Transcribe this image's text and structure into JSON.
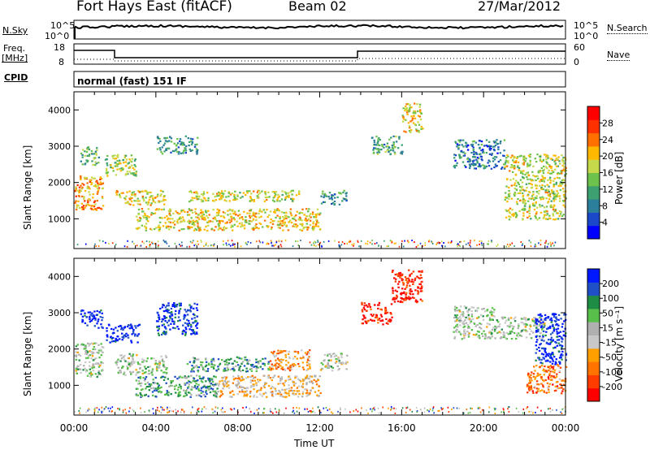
{
  "header": {
    "title": "Fort Hays East (fitACF)",
    "beam": "Beam 02",
    "date": "27/Mar/2012"
  },
  "panels": {
    "nsky": {
      "label": "N.Sky",
      "tick_top": "10^5",
      "tick_bottom": "10^0"
    },
    "nsearch": {
      "label": "N.Search",
      "tick_top": "10^5",
      "tick_bottom": "10^0"
    },
    "freq": {
      "label_top": "Freq.",
      "label_unit": "[MHz]",
      "tick_top": "18",
      "tick_bottom": "8"
    },
    "nave": {
      "label": "Nave",
      "tick_top": "60",
      "tick_bottom": "0"
    },
    "cpid": {
      "label": "CPID",
      "value": "normal (fast) 151 IF"
    }
  },
  "colors": {
    "power_scale": [
      "#0000ff",
      "#1a48c8",
      "#2b7f9a",
      "#3ca070",
      "#6cc24a",
      "#c6d94a",
      "#ffb800",
      "#ff7000",
      "#ff3000",
      "#ff0000"
    ],
    "velocity_scale": [
      "#0018ff",
      "#2050c8",
      "#1f8c46",
      "#58c04a",
      "#b0b0b0",
      "#c8c8c8",
      "#ffa000",
      "#ff7400",
      "#ff3c00",
      "#ff0000"
    ]
  },
  "chart_data": [
    {
      "type": "heatmap",
      "name": "Power",
      "xlabel": "",
      "ylabel": "Slant Range [km]",
      "x_ticks": [
        "00:00",
        "04:00",
        "08:00",
        "12:00",
        "16:00",
        "20:00",
        "00:00"
      ],
      "xlim_hours": [
        0,
        24
      ],
      "y_ticks": [
        1000,
        2000,
        3000,
        4000
      ],
      "ylim": [
        180,
        4500
      ],
      "colorbar": {
        "title": "Power [dB]",
        "ticks": [
          "4",
          "8",
          "12",
          "16",
          "20",
          "24",
          "28"
        ]
      },
      "regions": [
        {
          "t": [
            0.0,
            1.4
          ],
          "r": [
            1250,
            2200
          ],
          "level": 0.7
        },
        {
          "t": [
            0.3,
            1.2
          ],
          "r": [
            2500,
            3000
          ],
          "level": 0.4
        },
        {
          "t": [
            1.5,
            3.0
          ],
          "r": [
            2200,
            2800
          ],
          "level": 0.5
        },
        {
          "t": [
            2.0,
            4.5
          ],
          "r": [
            1400,
            1800
          ],
          "level": 0.6
        },
        {
          "t": [
            4.0,
            6.0
          ],
          "r": [
            2800,
            3300
          ],
          "level": 0.3
        },
        {
          "t": [
            5.5,
            11.0
          ],
          "r": [
            1500,
            1800
          ],
          "level": 0.55
        },
        {
          "t": [
            3.0,
            12.0
          ],
          "r": [
            700,
            1300
          ],
          "level": 0.6
        },
        {
          "t": [
            12.0,
            13.3
          ],
          "r": [
            1400,
            1800
          ],
          "level": 0.3
        },
        {
          "t": [
            14.5,
            16.0
          ],
          "r": [
            2800,
            3300
          ],
          "level": 0.35
        },
        {
          "t": [
            16.0,
            17.0
          ],
          "r": [
            3400,
            4200
          ],
          "level": 0.6
        },
        {
          "t": [
            18.5,
            21.0
          ],
          "r": [
            2400,
            3200
          ],
          "level": 0.25
        },
        {
          "t": [
            21.0,
            24.0
          ],
          "r": [
            1000,
            2800
          ],
          "level": 0.55
        }
      ]
    },
    {
      "type": "heatmap",
      "name": "Velocity",
      "xlabel": "Time UT",
      "ylabel": "Slant Range [km]",
      "x_ticks": [
        "00:00",
        "04:00",
        "08:00",
        "12:00",
        "16:00",
        "20:00",
        "00:00"
      ],
      "xlim_hours": [
        0,
        24
      ],
      "y_ticks": [
        1000,
        2000,
        3000,
        4000
      ],
      "ylim": [
        180,
        4500
      ],
      "colorbar": {
        "title": "Velocity [m s⁻¹]",
        "ticks": [
          "200",
          "100",
          "50",
          "15",
          "-15",
          "-50",
          "-100",
          "-200"
        ]
      },
      "regions": [
        {
          "t": [
            0.0,
            1.4
          ],
          "r": [
            1250,
            2200
          ],
          "level": 0.45
        },
        {
          "t": [
            0.3,
            1.4
          ],
          "r": [
            2600,
            3100
          ],
          "level": 0.05
        },
        {
          "t": [
            1.5,
            3.2
          ],
          "r": [
            2200,
            2700
          ],
          "level": 0.05
        },
        {
          "t": [
            2.0,
            4.5
          ],
          "r": [
            1300,
            1900
          ],
          "level": 0.45
        },
        {
          "t": [
            4.0,
            6.0
          ],
          "r": [
            2400,
            3300
          ],
          "level": 0.1
        },
        {
          "t": [
            5.5,
            9.5
          ],
          "r": [
            1400,
            1800
          ],
          "level": 0.3
        },
        {
          "t": [
            9.5,
            11.5
          ],
          "r": [
            1400,
            2000
          ],
          "level": 0.7
        },
        {
          "t": [
            3.0,
            7.0
          ],
          "r": [
            700,
            1300
          ],
          "level": 0.3
        },
        {
          "t": [
            7.0,
            12.0
          ],
          "r": [
            700,
            1300
          ],
          "level": 0.6
        },
        {
          "t": [
            12.0,
            13.3
          ],
          "r": [
            1400,
            1900
          ],
          "level": 0.45
        },
        {
          "t": [
            14.0,
            15.5
          ],
          "r": [
            2700,
            3300
          ],
          "level": 0.95
        },
        {
          "t": [
            15.5,
            17.0
          ],
          "r": [
            3300,
            4200
          ],
          "level": 0.95
        },
        {
          "t": [
            18.5,
            20.5
          ],
          "r": [
            2300,
            3200
          ],
          "level": 0.45
        },
        {
          "t": [
            20.5,
            23.0
          ],
          "r": [
            2300,
            2900
          ],
          "level": 0.45
        },
        {
          "t": [
            22.5,
            24.0
          ],
          "r": [
            1600,
            3000
          ],
          "level": 0.05
        },
        {
          "t": [
            22.0,
            24.0
          ],
          "r": [
            800,
            1600
          ],
          "level": 0.75
        }
      ]
    }
  ]
}
